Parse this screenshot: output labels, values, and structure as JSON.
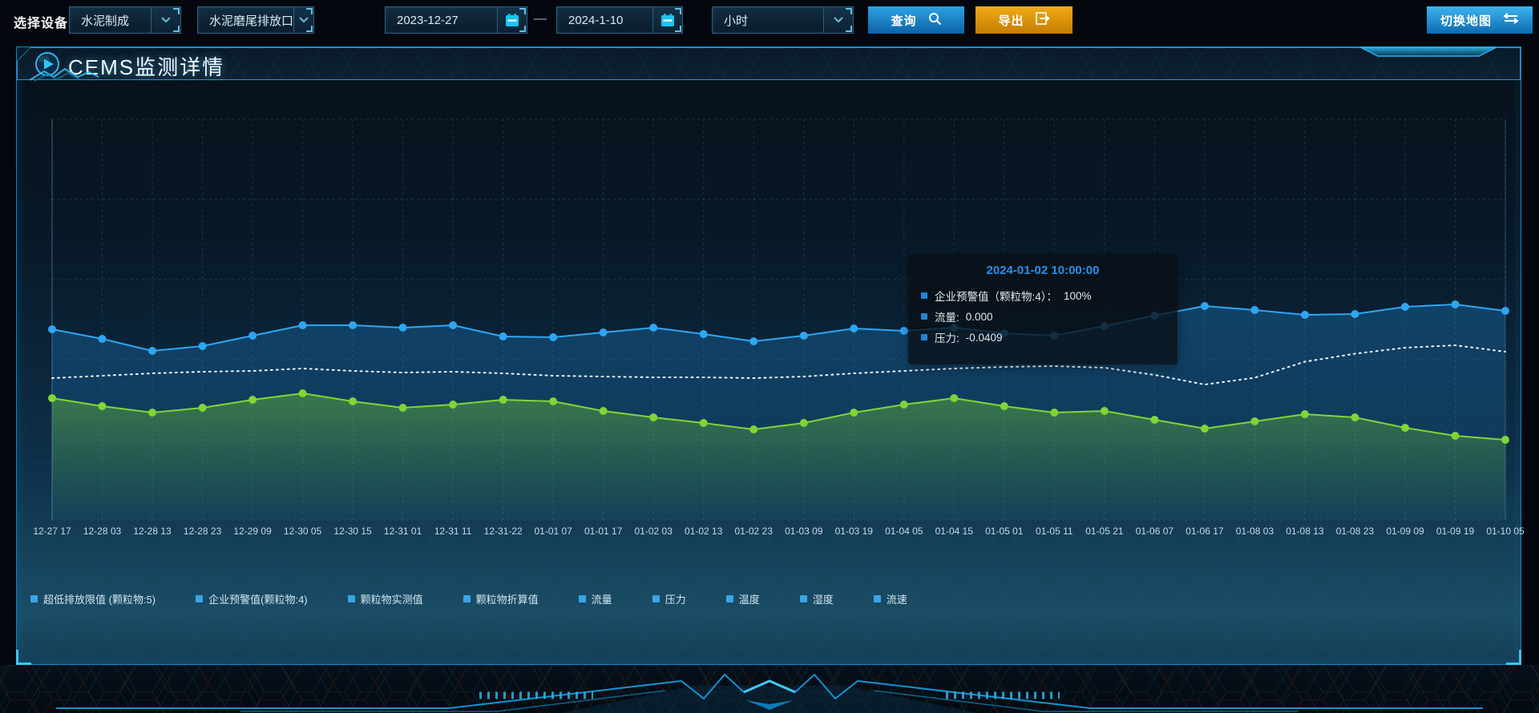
{
  "toolbar": {
    "device_label": "选择设备",
    "selects": [
      {
        "value": "水泥制成"
      },
      {
        "value": "水泥磨尾排放口"
      },
      {
        "value": "小时"
      }
    ],
    "date_range": {
      "start": "2023-12-27",
      "separator": "—",
      "end": "2024-1-10"
    },
    "query_button": "查询",
    "export_button": "导出",
    "switch_map_button": "切换地图",
    "icons": {
      "query": "search-icon",
      "export": "export-arrow-icon",
      "switch_map": "swap-arrows-icon",
      "date": "calendar-icon",
      "select": "chevron-down-icon"
    }
  },
  "panel": {
    "title": "CEMS监测详情",
    "title_icon": "play-icon"
  },
  "tooltip": {
    "title": "2024-01-02 10:00:00",
    "title_color": "#2a8fe8",
    "marker_color": "#2285d6",
    "items": [
      {
        "label": "企业预警值（颗粒物:4）：",
        "value": "100%"
      },
      {
        "label": "流量:",
        "value": "0.000"
      },
      {
        "label": "压力:",
        "value": "-0.0409"
      }
    ]
  },
  "chart_data": {
    "type": "line",
    "grid": true,
    "ylim": [
      0,
      100
    ],
    "legend_position": "bottom-left",
    "legend_marker_color": "#3aa4e8",
    "x": [
      "12-27 17",
      "12-28 03",
      "12-28 13",
      "12-28 23",
      "12-29 09",
      "12-30 05",
      "12-30 15",
      "12-31 01",
      "12-31 11",
      "12-31-22",
      "01-01 07",
      "01-01 17",
      "01-02 03",
      "01-02 13",
      "01-02 23",
      "01-03 09",
      "01-03 19",
      "01-04 05",
      "01-04 15",
      "01-05 01",
      "01-05 11",
      "01-05 21",
      "01-06 07",
      "01-06 17",
      "01-08 03",
      "01-08 13",
      "01-08 23",
      "01-09 09",
      "01-09 19",
      "01-10 05"
    ],
    "legend": [
      "超低排放限值 (颗粒物:5)",
      "企业预警值(颗粒物:4)",
      "颗粒物实测值",
      "颗粒物折算值",
      "流量",
      "压力",
      "温度",
      "湿度",
      "流速"
    ],
    "series": [
      {
        "name": "企业预警值(颗粒物:4)",
        "color": "#2ea6f2",
        "line_style": "solid",
        "symbols": true,
        "area": true,
        "values": [
          47.6,
          45.2,
          42.2,
          43.4,
          46,
          48.6,
          48.6,
          48,
          48.6,
          45.8,
          45.6,
          46.8,
          48,
          46.4,
          44.6,
          46,
          47.8,
          47.2,
          48,
          46.6,
          46,
          48.4,
          51,
          53.4,
          52.4,
          51.2,
          51.4,
          53.2,
          53.8,
          52.2
        ]
      },
      {
        "name": "流量",
        "color": "#edf5fa",
        "line_style": "dotted",
        "symbols": false,
        "area": false,
        "values": [
          35.4,
          36,
          36.6,
          37,
          37.2,
          37.8,
          37.2,
          36.8,
          37,
          36.6,
          36,
          35.8,
          35.6,
          35.6,
          35.4,
          35.8,
          36.6,
          37.2,
          37.8,
          38.2,
          38.4,
          38,
          36.2,
          33.8,
          35.5,
          39.5,
          41.5,
          43,
          43.6,
          42
        ]
      },
      {
        "name": "压力",
        "color": "#7fd637",
        "line_style": "solid",
        "symbols": true,
        "area": true,
        "values": [
          30.4,
          28.4,
          26.8,
          28,
          30,
          31.6,
          29.6,
          28,
          28.8,
          30,
          29.6,
          27.2,
          25.6,
          24.2,
          22.6,
          24.2,
          26.8,
          28.8,
          30.4,
          28.4,
          26.8,
          27.2,
          25,
          22.8,
          24.6,
          26.4,
          25.6,
          23,
          21,
          20
        ]
      }
    ]
  }
}
